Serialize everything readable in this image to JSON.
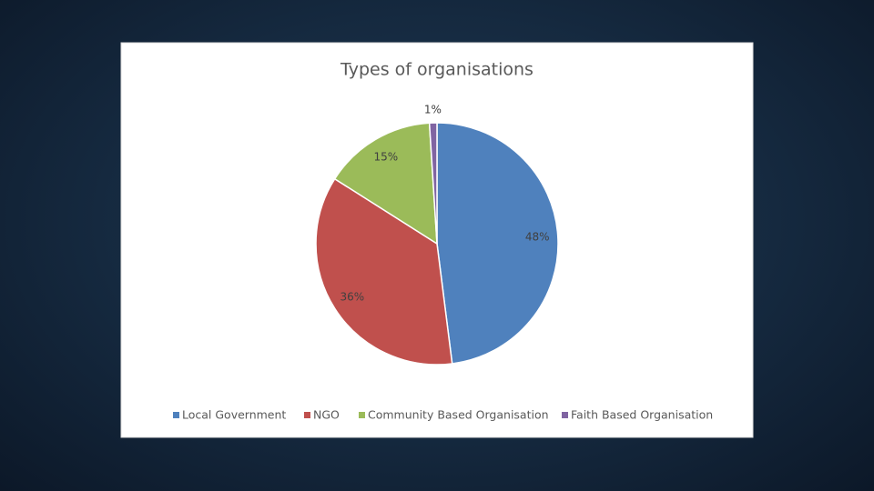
{
  "chart_data": {
    "type": "pie",
    "title": "Types of organisations",
    "categories": [
      "Local Government",
      "NGO",
      "Community Based Organisation",
      "Faith Based Organisation"
    ],
    "values": [
      48,
      36,
      15,
      1
    ],
    "value_labels": [
      "48%",
      "36%",
      "15%",
      "1%"
    ],
    "colors": [
      "#4f81bd",
      "#c0504d",
      "#9bbb59",
      "#8064a2"
    ],
    "legend": "bottom"
  }
}
